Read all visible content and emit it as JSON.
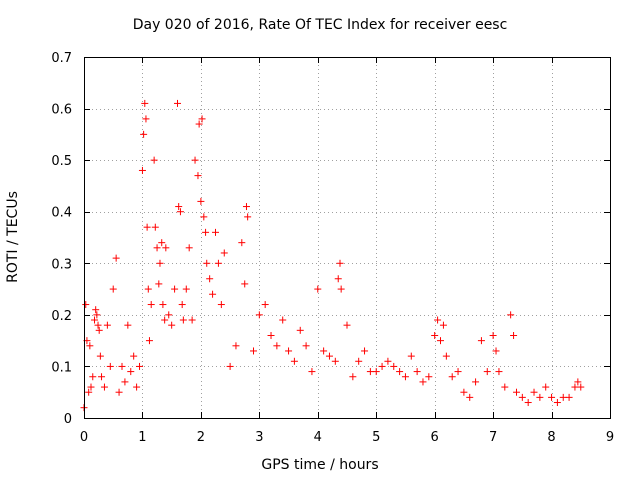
{
  "chart_data": {
    "type": "scatter",
    "title": "Day 020 of 2016, Rate Of TEC Index for receiver eesc",
    "xlabel": "GPS time / hours",
    "ylabel": "ROTI / TECUs",
    "xlim": [
      0,
      9
    ],
    "ylim": [
      0,
      0.7
    ],
    "xticks": [
      "0",
      "1",
      "2",
      "3",
      "4",
      "5",
      "6",
      "7",
      "8",
      "9"
    ],
    "yticks": [
      "0",
      "0.1",
      "0.2",
      "0.3",
      "0.4",
      "0.5",
      "0.6",
      "0.7"
    ],
    "grid": true,
    "marker": "+",
    "series_color": "#ff0000",
    "series": [
      {
        "name": "ROTI",
        "x": [
          0.0,
          0.03,
          0.05,
          0.08,
          0.1,
          0.12,
          0.15,
          0.18,
          0.2,
          0.22,
          0.24,
          0.26,
          0.28,
          0.3,
          0.35,
          0.4,
          0.45,
          0.5,
          0.55,
          0.6,
          0.65,
          0.7,
          0.75,
          0.8,
          0.85,
          0.9,
          0.95,
          1.0,
          1.02,
          1.04,
          1.06,
          1.08,
          1.1,
          1.12,
          1.15,
          1.2,
          1.22,
          1.25,
          1.28,
          1.3,
          1.33,
          1.35,
          1.38,
          1.4,
          1.45,
          1.5,
          1.55,
          1.6,
          1.62,
          1.65,
          1.68,
          1.7,
          1.75,
          1.8,
          1.85,
          1.9,
          1.95,
          1.97,
          2.0,
          2.02,
          2.05,
          2.08,
          2.1,
          2.15,
          2.2,
          2.25,
          2.3,
          2.35,
          2.4,
          2.5,
          2.6,
          2.7,
          2.75,
          2.78,
          2.8,
          2.9,
          3.0,
          3.1,
          3.2,
          3.3,
          3.4,
          3.5,
          3.6,
          3.7,
          3.8,
          3.9,
          4.0,
          4.1,
          4.2,
          4.3,
          4.35,
          4.38,
          4.4,
          4.5,
          4.6,
          4.7,
          4.8,
          4.9,
          5.0,
          5.1,
          5.2,
          5.3,
          5.4,
          5.5,
          5.6,
          5.7,
          5.8,
          5.9,
          6.0,
          6.05,
          6.1,
          6.15,
          6.2,
          6.3,
          6.4,
          6.5,
          6.6,
          6.7,
          6.8,
          6.9,
          7.0,
          7.05,
          7.1,
          7.2,
          7.3,
          7.35,
          7.4,
          7.5,
          7.6,
          7.7,
          7.8,
          7.9,
          8.0,
          8.1,
          8.2,
          8.3,
          8.4,
          8.45,
          8.5
        ],
        "y": [
          0.02,
          0.22,
          0.15,
          0.05,
          0.14,
          0.06,
          0.08,
          0.19,
          0.21,
          0.2,
          0.18,
          0.17,
          0.12,
          0.08,
          0.06,
          0.18,
          0.1,
          0.25,
          0.31,
          0.05,
          0.1,
          0.07,
          0.18,
          0.09,
          0.12,
          0.06,
          0.1,
          0.48,
          0.55,
          0.61,
          0.58,
          0.37,
          0.25,
          0.15,
          0.22,
          0.5,
          0.37,
          0.33,
          0.26,
          0.3,
          0.34,
          0.22,
          0.19,
          0.33,
          0.2,
          0.18,
          0.25,
          0.61,
          0.41,
          0.4,
          0.22,
          0.19,
          0.25,
          0.33,
          0.19,
          0.5,
          0.47,
          0.57,
          0.42,
          0.58,
          0.39,
          0.36,
          0.3,
          0.27,
          0.24,
          0.36,
          0.3,
          0.22,
          0.32,
          0.1,
          0.14,
          0.34,
          0.26,
          0.41,
          0.39,
          0.13,
          0.2,
          0.22,
          0.16,
          0.14,
          0.19,
          0.13,
          0.11,
          0.17,
          0.14,
          0.09,
          0.25,
          0.13,
          0.12,
          0.11,
          0.27,
          0.3,
          0.25,
          0.18,
          0.08,
          0.11,
          0.13,
          0.09,
          0.09,
          0.1,
          0.11,
          0.1,
          0.09,
          0.08,
          0.12,
          0.09,
          0.07,
          0.08,
          0.16,
          0.19,
          0.15,
          0.18,
          0.12,
          0.08,
          0.09,
          0.05,
          0.04,
          0.07,
          0.15,
          0.09,
          0.16,
          0.13,
          0.09,
          0.06,
          0.2,
          0.16,
          0.05,
          0.04,
          0.03,
          0.05,
          0.04,
          0.06,
          0.04,
          0.03,
          0.04,
          0.04,
          0.06,
          0.07,
          0.06
        ]
      }
    ]
  }
}
